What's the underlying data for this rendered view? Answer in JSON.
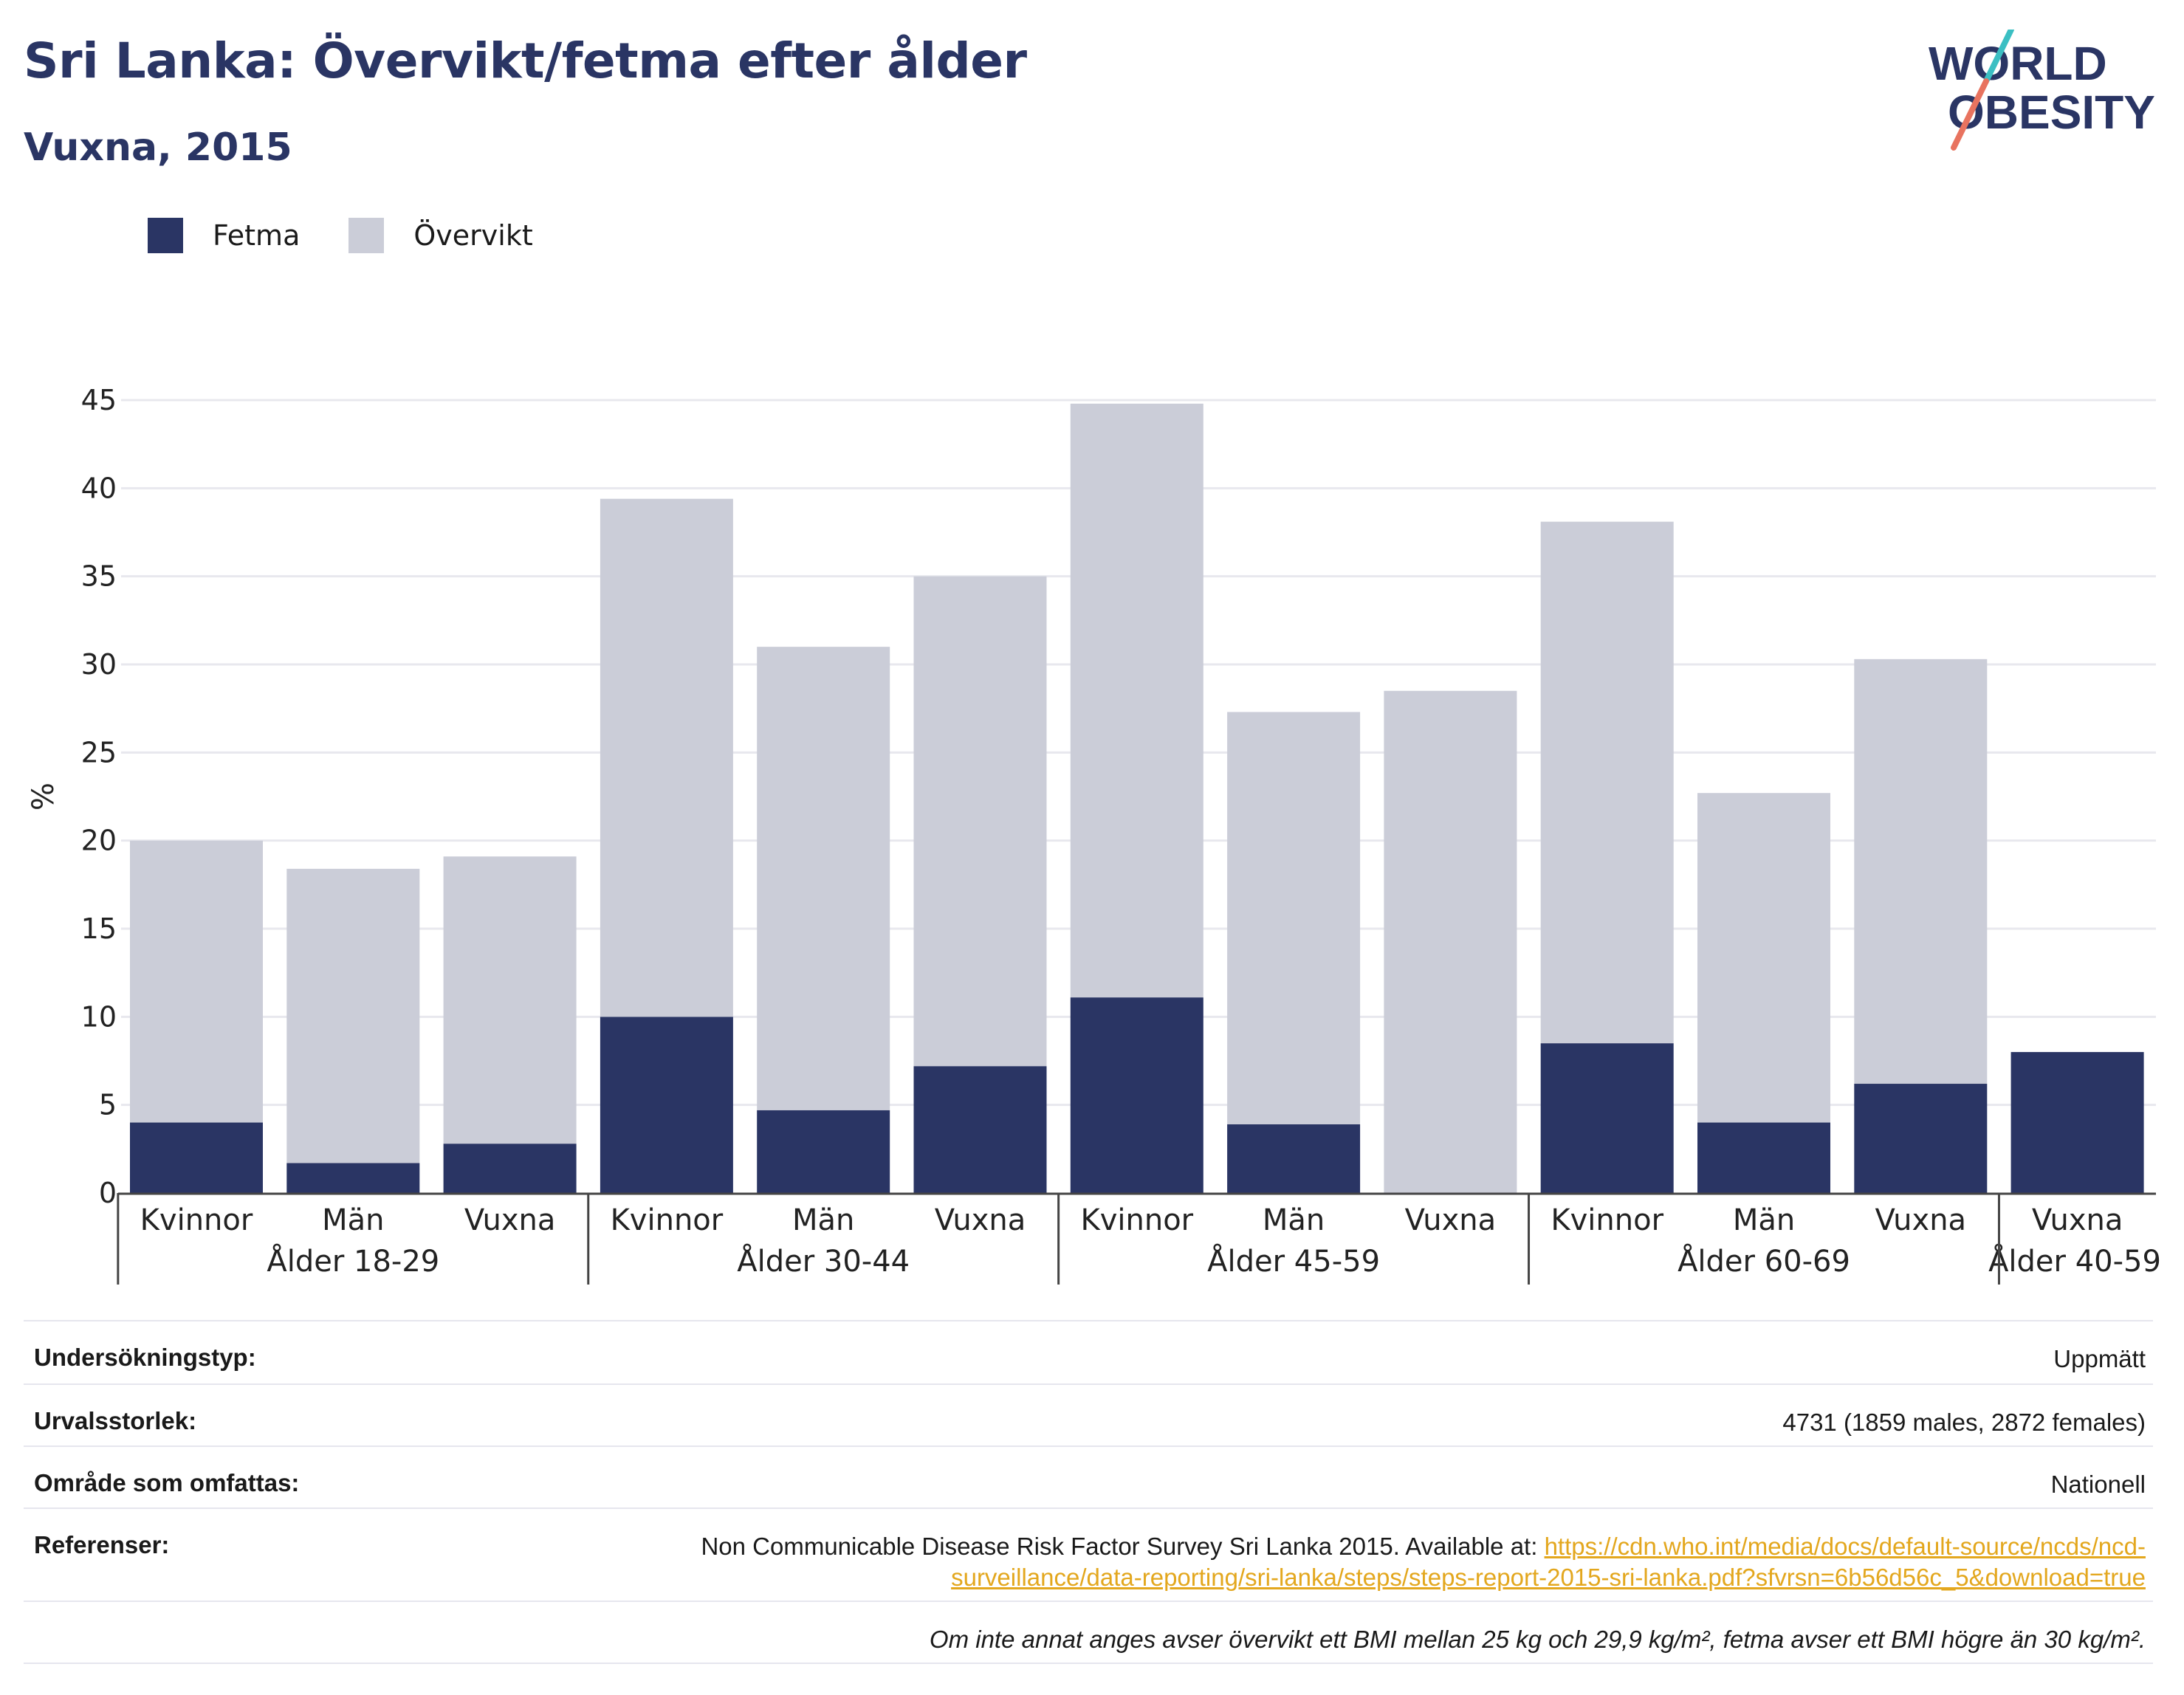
{
  "title": "Sri Lanka: Övervikt/fetma efter ålder",
  "subtitle": "Vuxna, 2015",
  "logo": {
    "line1": "WORLD",
    "line2": "OBESITY"
  },
  "colors": {
    "fetma": "#2a3564",
    "overvikt": "#cbcdd8",
    "accent_teal": "#3bbfc3",
    "accent_coral": "#e8735f",
    "link": "#e3a71e"
  },
  "legend": [
    {
      "label": "Fetma",
      "color": "#2a3564"
    },
    {
      "label": "Övervikt",
      "color": "#cbcdd8"
    }
  ],
  "chart_data": {
    "type": "bar",
    "stacked": true,
    "ylabel": "%",
    "ylim": [
      0,
      45
    ],
    "yticks": [
      0,
      5,
      10,
      15,
      20,
      25,
      30,
      35,
      40,
      45
    ],
    "grid": true,
    "legend_position": "top-left",
    "groups": [
      {
        "label": "Ålder 18-29",
        "categories": [
          "Kvinnor",
          "Män",
          "Vuxna"
        ]
      },
      {
        "label": "Ålder 30-44",
        "categories": [
          "Kvinnor",
          "Män",
          "Vuxna"
        ]
      },
      {
        "label": "Ålder 45-59",
        "categories": [
          "Kvinnor",
          "Män",
          "Vuxna"
        ]
      },
      {
        "label": "Ålder 60-69",
        "categories": [
          "Kvinnor",
          "Män",
          "Vuxna"
        ]
      },
      {
        "label": "Ålder 40-59",
        "categories": [
          "Vuxna"
        ]
      }
    ],
    "categories": [
      "Kvinnor",
      "Män",
      "Vuxna",
      "Kvinnor",
      "Män",
      "Vuxna",
      "Kvinnor",
      "Män",
      "Vuxna",
      "Kvinnor",
      "Män",
      "Vuxna",
      "Vuxna"
    ],
    "series": [
      {
        "name": "Fetma",
        "values": [
          4.0,
          1.7,
          2.8,
          10.0,
          4.7,
          7.2,
          11.1,
          3.9,
          0,
          8.5,
          4.0,
          6.2,
          8.0
        ]
      },
      {
        "name": "Övervikt",
        "values": [
          16.0,
          16.7,
          16.3,
          29.4,
          26.3,
          27.8,
          33.7,
          23.4,
          28.5,
          29.6,
          18.7,
          24.1,
          0
        ]
      }
    ]
  },
  "info": {
    "rows": [
      {
        "label": "Undersökningstyp:",
        "value": "Uppmätt"
      },
      {
        "label": "Urvalsstorlek:",
        "value": "4731 (1859 males, 2872 females)"
      },
      {
        "label": "Område som omfattas:",
        "value": "Nationell"
      }
    ],
    "references_label": "Referenser:",
    "references_text": "Non Communicable Disease Risk Factor Survey Sri Lanka 2015. Available at: ",
    "references_link": "https://cdn.who.int/media/docs/default-source/ncds/ncd-surveillance/data-reporting/sri-lanka/steps/steps-report-2015-sri-lanka.pdf?sfvrsn=6b56d56c_5&download=true",
    "note": "Om inte annat anges avser övervikt ett BMI mellan 25 kg och 29,9 kg/m², fetma avser ett BMI högre än 30 kg/m²."
  }
}
